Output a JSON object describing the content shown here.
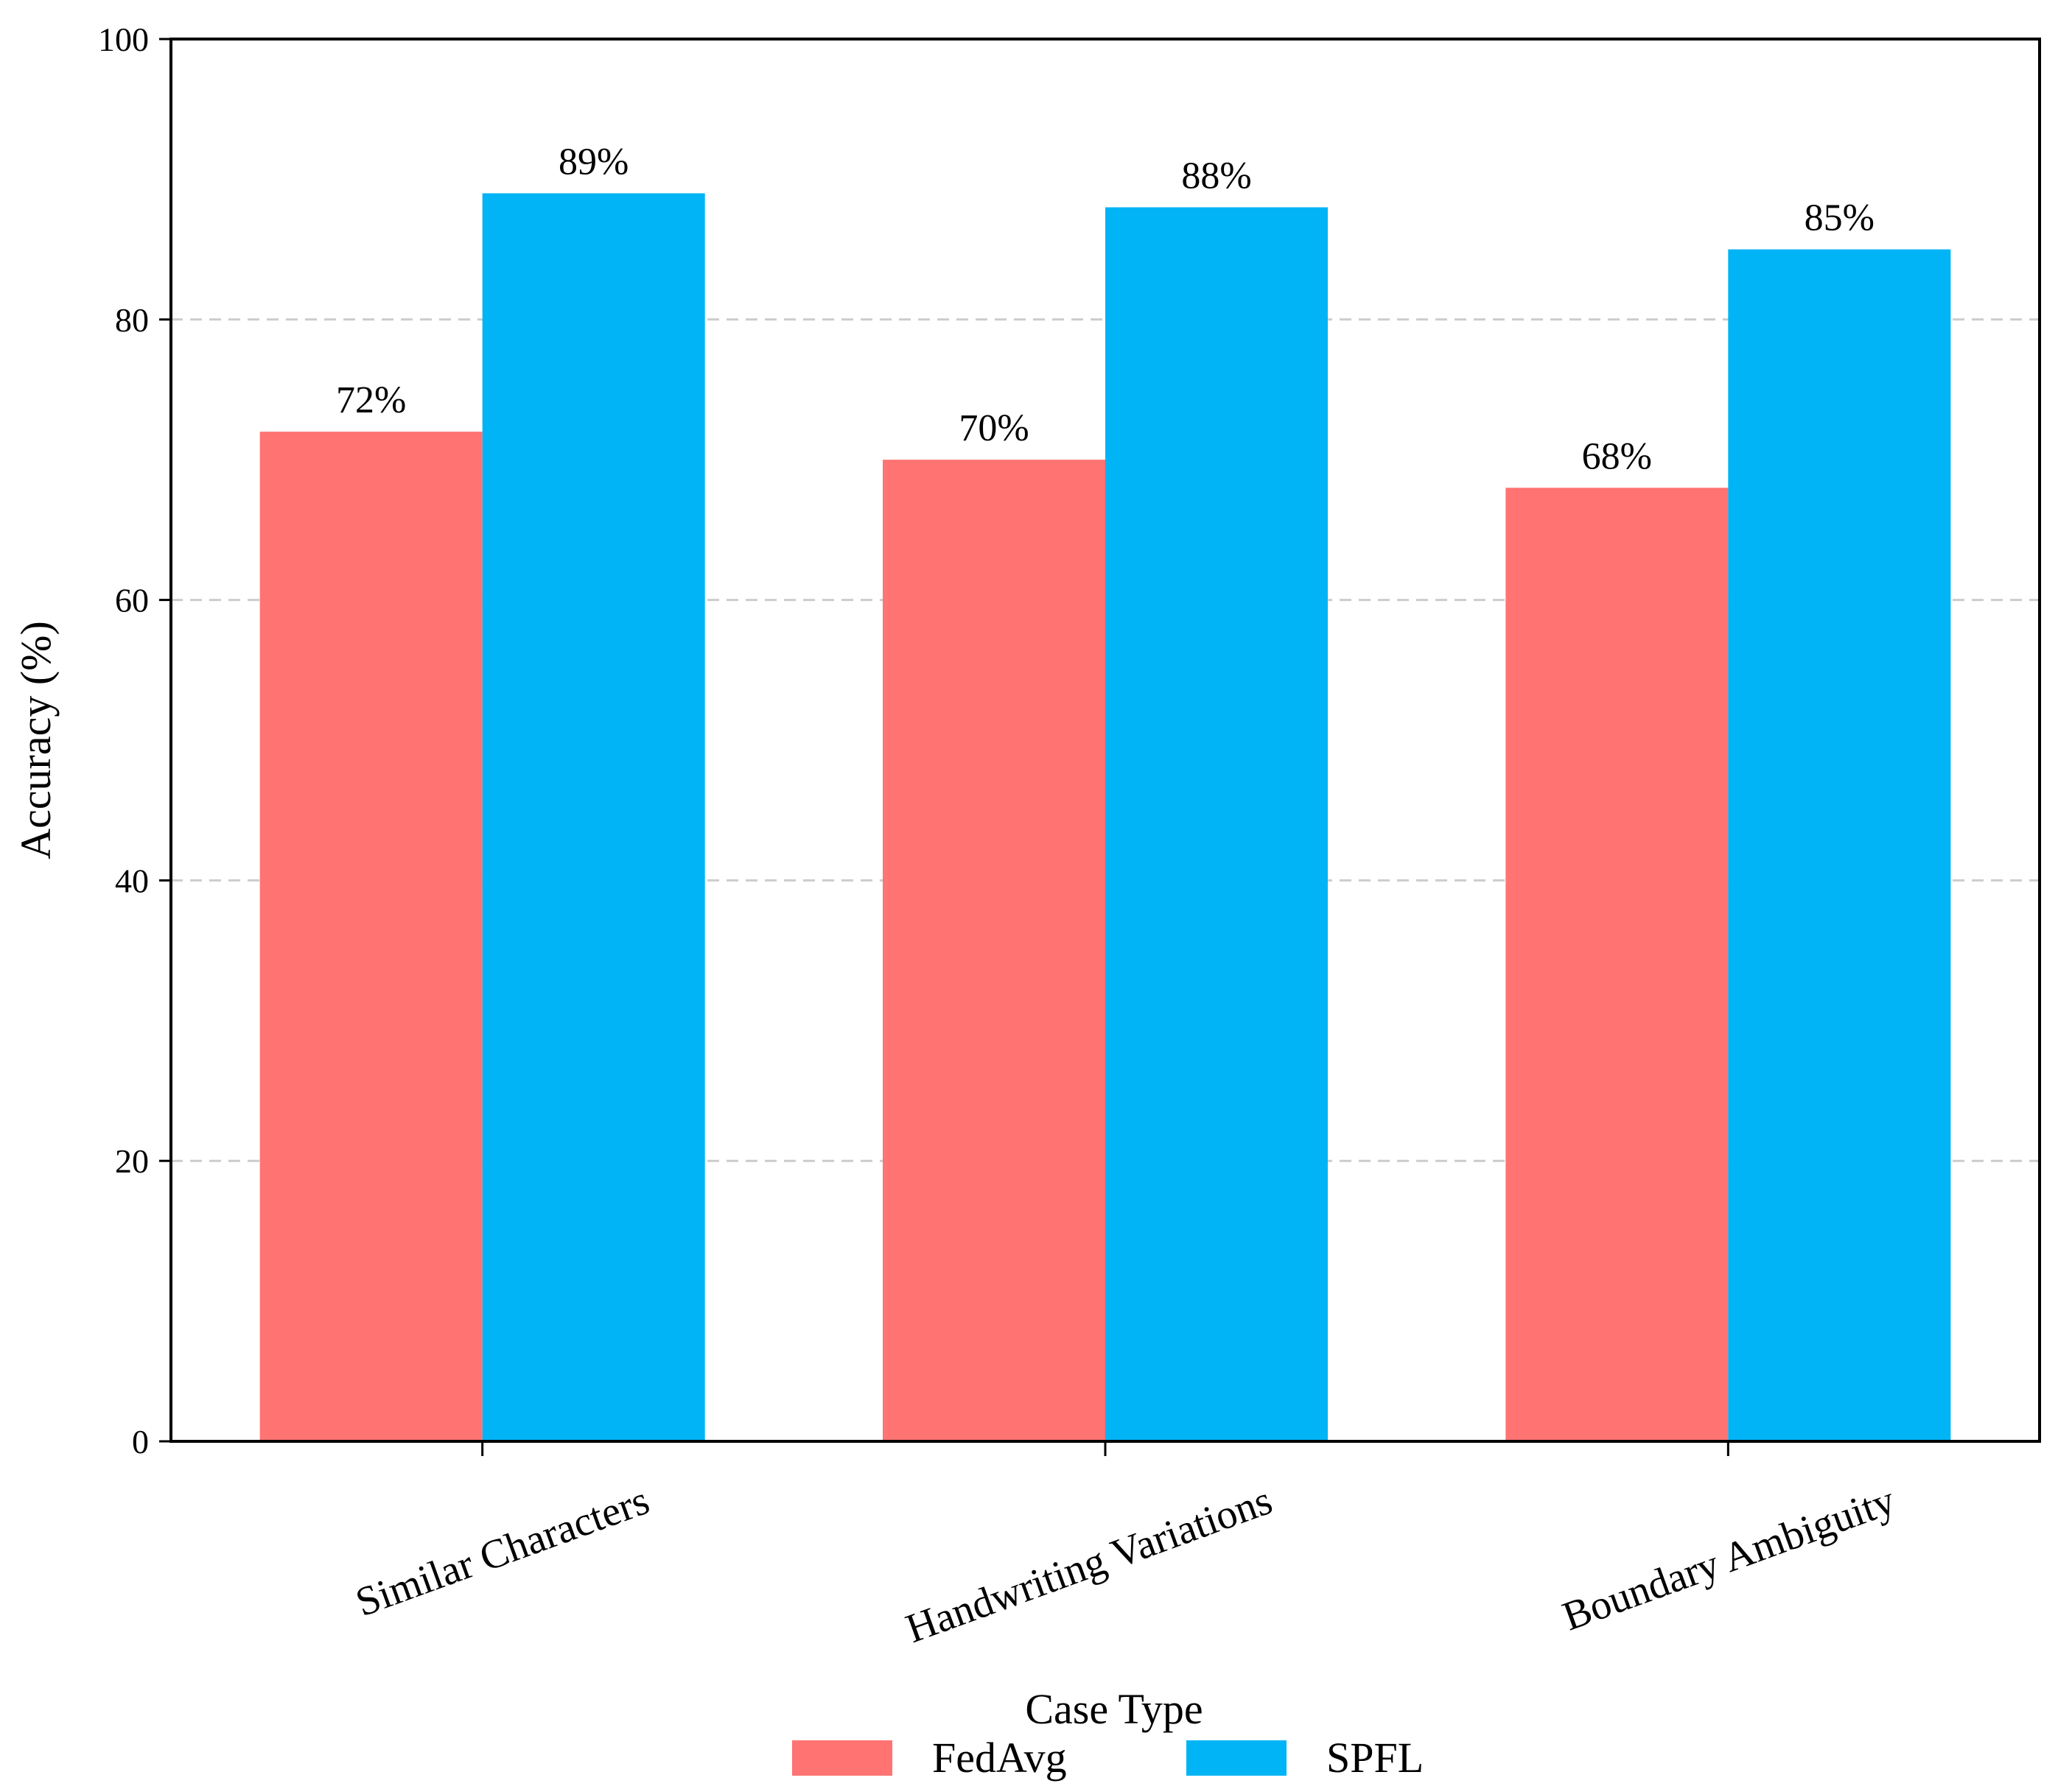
{
  "chart_data": {
    "type": "bar",
    "categories": [
      "Similar Characters",
      "Handwriting Variations",
      "Boundary Ambiguity"
    ],
    "series": [
      {
        "name": "FedAvg",
        "color": "#FF7373",
        "values": [
          72,
          70,
          68
        ],
        "labels": [
          "72%",
          "70%",
          "68%"
        ]
      },
      {
        "name": "SPFL",
        "color": "#00B4F5",
        "values": [
          89,
          88,
          85
        ],
        "labels": [
          "89%",
          "88%",
          "85%"
        ]
      }
    ],
    "title": "",
    "xlabel": "Case Type",
    "ylabel": "Accuracy (%)",
    "ylim": [
      0,
      100
    ],
    "yticks": [
      0,
      20,
      40,
      60,
      80,
      100
    ],
    "ytick_labels": [
      "0",
      "20",
      "40",
      "60",
      "80",
      "100"
    ],
    "grid": "y-dashed",
    "legend": "bottom-center"
  }
}
